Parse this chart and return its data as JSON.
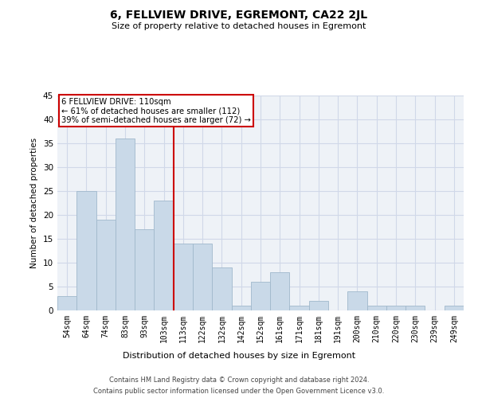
{
  "title": "6, FELLVIEW DRIVE, EGREMONT, CA22 2JL",
  "subtitle": "Size of property relative to detached houses in Egremont",
  "xlabel": "Distribution of detached houses by size in Egremont",
  "ylabel": "Number of detached properties",
  "bar_labels": [
    "54sqm",
    "64sqm",
    "74sqm",
    "83sqm",
    "93sqm",
    "103sqm",
    "113sqm",
    "122sqm",
    "132sqm",
    "142sqm",
    "152sqm",
    "161sqm",
    "171sqm",
    "181sqm",
    "191sqm",
    "200sqm",
    "210sqm",
    "220sqm",
    "230sqm",
    "239sqm",
    "249sqm"
  ],
  "bar_values": [
    3,
    25,
    19,
    36,
    17,
    23,
    14,
    14,
    9,
    1,
    6,
    8,
    1,
    2,
    0,
    4,
    1,
    1,
    1,
    0,
    1
  ],
  "bar_color": "#c9d9e8",
  "bar_edgecolor": "#a0b8cc",
  "annotation_box_text": "6 FELLVIEW DRIVE: 110sqm\n← 61% of detached houses are smaller (112)\n39% of semi-detached houses are larger (72) →",
  "annotation_box_color": "#cc0000",
  "vline_color": "#cc0000",
  "vline_x_bin": 5.5,
  "grid_color": "#d0d8e8",
  "bg_color": "#eef2f7",
  "ylim": [
    0,
    45
  ],
  "yticks": [
    0,
    5,
    10,
    15,
    20,
    25,
    30,
    35,
    40,
    45
  ],
  "footnote1": "Contains HM Land Registry data © Crown copyright and database right 2024.",
  "footnote2": "Contains public sector information licensed under the Open Government Licence v3.0."
}
